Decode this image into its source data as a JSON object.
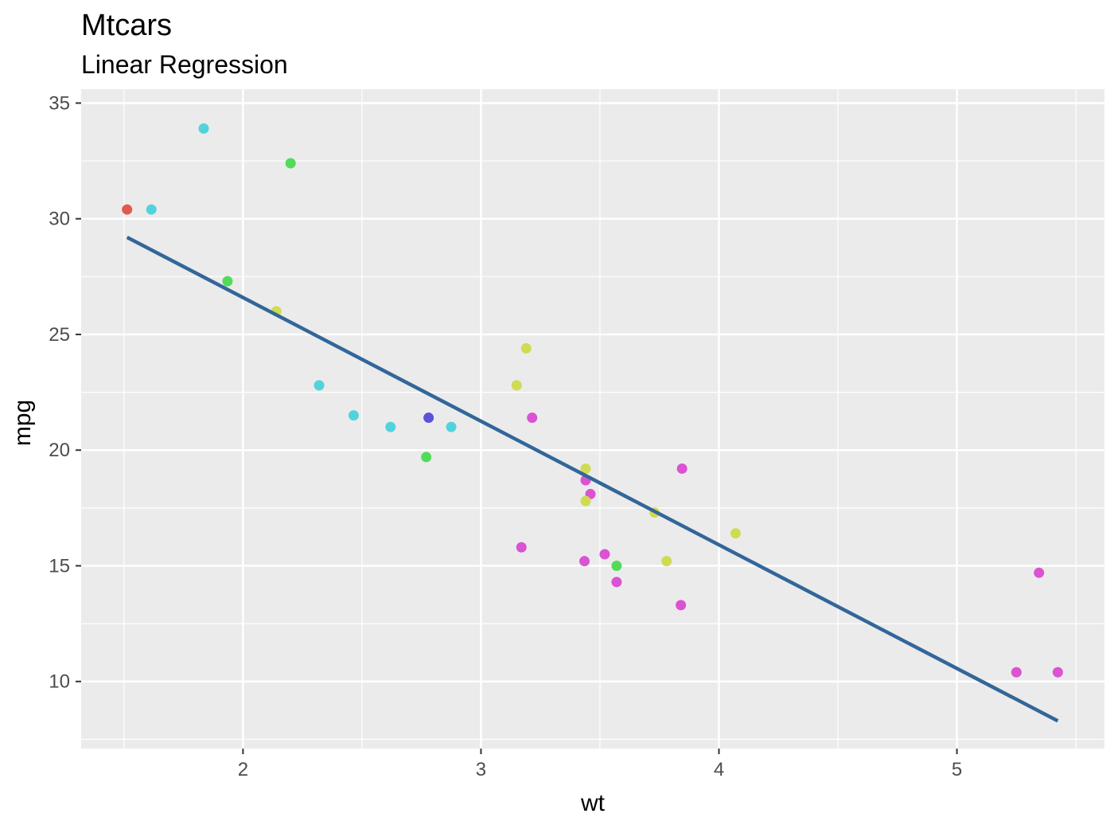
{
  "chart_data": {
    "type": "scatter",
    "title": "Mtcars",
    "subtitle": "Linear Regression",
    "xlabel": "wt",
    "ylabel": "mpg",
    "xlim": [
      1.32,
      5.62
    ],
    "ylim": [
      7.1,
      35.6
    ],
    "x_ticks": [
      2,
      3,
      4,
      5
    ],
    "y_ticks": [
      10,
      15,
      20,
      25,
      30,
      35
    ],
    "grid": true,
    "legend": "none",
    "regression_line": {
      "color": "#336699",
      "x": [
        1.513,
        5.424
      ],
      "y": [
        29.198,
        8.297
      ]
    },
    "points": [
      {
        "x": 1.513,
        "y": 30.4,
        "color": "#E05A4E"
      },
      {
        "x": 1.615,
        "y": 30.4,
        "color": "#52D3DB"
      },
      {
        "x": 1.835,
        "y": 33.9,
        "color": "#52D3DB"
      },
      {
        "x": 2.2,
        "y": 32.4,
        "color": "#52DB5A"
      },
      {
        "x": 1.935,
        "y": 27.3,
        "color": "#52DB5A"
      },
      {
        "x": 2.14,
        "y": 26.0,
        "color": "#CFDB52"
      },
      {
        "x": 2.32,
        "y": 22.8,
        "color": "#52D3DB"
      },
      {
        "x": 2.465,
        "y": 21.5,
        "color": "#52D3DB"
      },
      {
        "x": 2.62,
        "y": 21.0,
        "color": "#52D3DB"
      },
      {
        "x": 2.875,
        "y": 21.0,
        "color": "#52D3DB"
      },
      {
        "x": 2.77,
        "y": 19.7,
        "color": "#52DB5A"
      },
      {
        "x": 2.78,
        "y": 21.4,
        "color": "#5A52DB"
      },
      {
        "x": 3.15,
        "y": 22.8,
        "color": "#CFDB52"
      },
      {
        "x": 3.19,
        "y": 24.4,
        "color": "#CFDB52"
      },
      {
        "x": 3.215,
        "y": 21.4,
        "color": "#DB52D3"
      },
      {
        "x": 3.17,
        "y": 15.8,
        "color": "#DB52D3"
      },
      {
        "x": 3.44,
        "y": 19.2,
        "color": "#CFDB52"
      },
      {
        "x": 3.44,
        "y": 18.7,
        "color": "#DB52D3"
      },
      {
        "x": 3.46,
        "y": 18.1,
        "color": "#DB52D3"
      },
      {
        "x": 3.44,
        "y": 17.8,
        "color": "#CFDB52"
      },
      {
        "x": 3.435,
        "y": 15.2,
        "color": "#DB52D3"
      },
      {
        "x": 3.52,
        "y": 15.5,
        "color": "#DB52D3"
      },
      {
        "x": 3.57,
        "y": 15.0,
        "color": "#52DB5A"
      },
      {
        "x": 3.57,
        "y": 14.3,
        "color": "#DB52D3"
      },
      {
        "x": 3.73,
        "y": 17.3,
        "color": "#CFDB52"
      },
      {
        "x": 3.78,
        "y": 15.2,
        "color": "#CFDB52"
      },
      {
        "x": 3.845,
        "y": 19.2,
        "color": "#DB52D3"
      },
      {
        "x": 3.84,
        "y": 13.3,
        "color": "#DB52D3"
      },
      {
        "x": 4.07,
        "y": 16.4,
        "color": "#CFDB52"
      },
      {
        "x": 5.25,
        "y": 10.4,
        "color": "#DB52D3"
      },
      {
        "x": 5.345,
        "y": 14.7,
        "color": "#DB52D3"
      },
      {
        "x": 5.424,
        "y": 10.4,
        "color": "#DB52D3"
      }
    ]
  },
  "colors": {
    "panel": "#EBEBEB",
    "grid": "#FFFFFF"
  }
}
